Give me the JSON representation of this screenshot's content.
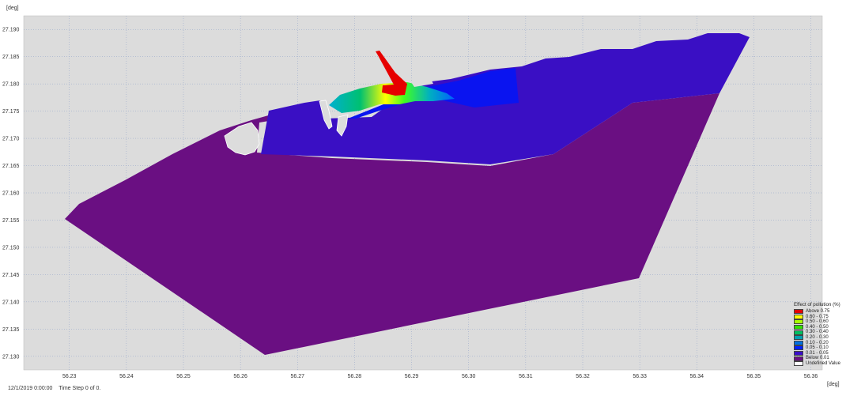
{
  "map": {
    "y_unit": "[deg]",
    "x_unit": "[deg]",
    "y_ticks": [
      "27.190",
      "27.185",
      "27.180",
      "27.175",
      "27.170",
      "27.165",
      "27.160",
      "27.155",
      "27.150",
      "27.145",
      "27.140",
      "27.135",
      "27.130"
    ],
    "x_ticks": [
      "56.23",
      "56.24",
      "56.25",
      "56.26",
      "56.27",
      "56.28",
      "56.29",
      "56.30",
      "56.31",
      "56.32",
      "56.33",
      "56.34",
      "56.35",
      "56.36"
    ],
    "x_range": [
      56.222,
      56.362
    ],
    "y_range": [
      27.1275,
      27.1925
    ],
    "colors": {
      "background": "#dcdcdc",
      "grid": "#8ea0c8",
      "deep": "#6a0f82",
      "blue_violet": "#3a0fc4",
      "blue": "#0a14f0",
      "above": "#ff0000"
    },
    "layers": [
      "below-0.01-zone",
      "0.01-0.05-zone",
      "0.05-0.10-zone",
      "plume-gradient",
      "channel-above-0.75"
    ]
  },
  "legend": {
    "title": "Effect of pollution (%)",
    "items": [
      {
        "label": "Above 0.75",
        "color": "#e60000"
      },
      {
        "label": "0.60 - 0.75",
        "color": "#ffff00"
      },
      {
        "label": "0.50 - 0.60",
        "color": "#a6ff00"
      },
      {
        "label": "0.40 - 0.50",
        "color": "#33e000"
      },
      {
        "label": "0.30 - 0.40",
        "color": "#00c060"
      },
      {
        "label": "0.20 - 0.30",
        "color": "#00a0b0"
      },
      {
        "label": "0.10 - 0.20",
        "color": "#0070e0"
      },
      {
        "label": "0.05 - 0.10",
        "color": "#0020ff"
      },
      {
        "label": "0.01 - 0.05",
        "color": "#3b0fc8"
      },
      {
        "label": "Below 0.01",
        "color": "#6a0f82"
      },
      {
        "label": "Undefined Value",
        "color": "#ffffff"
      }
    ]
  },
  "footer": {
    "datetime": "12/1/2019 0:00:00",
    "timestep": "Time Step 0 of 0."
  }
}
